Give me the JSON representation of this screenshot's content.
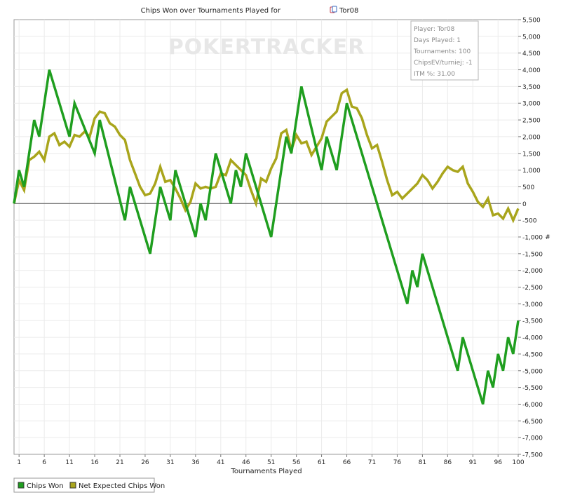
{
  "chart_data": {
    "type": "line",
    "title": "Chips Won over Tournaments Played for",
    "player_name": "Tor08",
    "xlabel": "Tournaments Played",
    "ylabel": "",
    "y_unit_symbol": "#",
    "xlim": [
      0,
      100
    ],
    "ylim": [
      -7500,
      5500
    ],
    "x_ticks": [
      1,
      6,
      11,
      16,
      21,
      26,
      31,
      36,
      41,
      46,
      51,
      56,
      61,
      66,
      71,
      76,
      81,
      86,
      91,
      96,
      100
    ],
    "y_ticks": [
      5500,
      5000,
      4500,
      4000,
      3500,
      3000,
      2500,
      2000,
      1500,
      1000,
      500,
      0,
      -500,
      -1000,
      -1500,
      -2000,
      -2500,
      -3000,
      -3500,
      -4000,
      -4500,
      -5000,
      -5500,
      -6000,
      -6500,
      -7000,
      -7500
    ],
    "y_tick_labels": [
      "5,500",
      "5,000",
      "4,500",
      "4,000",
      "3,500",
      "3,000",
      "2,500",
      "2,000",
      "1,500",
      "1,000",
      "500",
      "0",
      "-500",
      "-1,000",
      "-1,500",
      "-2,000",
      "-2,500",
      "-3,000",
      "-3,500",
      "-4,000",
      "-4,500",
      "-5,000",
      "-5,500",
      "-6,000",
      "-6,500",
      "-7,000",
      "-7,500"
    ],
    "grid": true,
    "legend_position": "bottom-left",
    "series": [
      {
        "name": "Chips Won",
        "color": "#1f9e1f",
        "points": [
          [
            0,
            0
          ],
          [
            1,
            1000
          ],
          [
            2,
            500
          ],
          [
            4,
            2500
          ],
          [
            5,
            2000
          ],
          [
            7,
            4000
          ],
          [
            11,
            2000
          ],
          [
            12,
            3000
          ],
          [
            16,
            1500
          ],
          [
            17,
            2500
          ],
          [
            22,
            -500
          ],
          [
            23,
            500
          ],
          [
            27,
            -1500
          ],
          [
            29,
            500
          ],
          [
            31,
            -500
          ],
          [
            32,
            1000
          ],
          [
            36,
            -1000
          ],
          [
            37,
            0
          ],
          [
            38,
            -500
          ],
          [
            40,
            1500
          ],
          [
            43,
            0
          ],
          [
            44,
            1000
          ],
          [
            45,
            500
          ],
          [
            46,
            1500
          ],
          [
            49,
            0
          ],
          [
            51,
            -1000
          ],
          [
            54,
            2000
          ],
          [
            55,
            1500
          ],
          [
            57,
            3500
          ],
          [
            61,
            1000
          ],
          [
            62,
            2000
          ],
          [
            64,
            1000
          ],
          [
            66,
            3000
          ],
          [
            78,
            -3000
          ],
          [
            79,
            -2000
          ],
          [
            80,
            -2500
          ],
          [
            81,
            -1500
          ],
          [
            88,
            -5000
          ],
          [
            89,
            -4000
          ],
          [
            93,
            -6000
          ],
          [
            94,
            -5000
          ],
          [
            95,
            -5500
          ],
          [
            96,
            -4500
          ],
          [
            97,
            -5000
          ],
          [
            98,
            -4000
          ],
          [
            99,
            -4500
          ],
          [
            100,
            -3500
          ]
        ]
      },
      {
        "name": "Net Expected Chips Won",
        "color": "#a9a51c",
        "points": [
          [
            0,
            0
          ],
          [
            1,
            700
          ],
          [
            2,
            400
          ],
          [
            3,
            1300
          ],
          [
            4,
            1400
          ],
          [
            5,
            1550
          ],
          [
            6,
            1300
          ],
          [
            7,
            2000
          ],
          [
            8,
            2100
          ],
          [
            9,
            1750
          ],
          [
            10,
            1850
          ],
          [
            11,
            1700
          ],
          [
            12,
            2050
          ],
          [
            13,
            2000
          ],
          [
            14,
            2150
          ],
          [
            15,
            2000
          ],
          [
            16,
            2550
          ],
          [
            17,
            2750
          ],
          [
            18,
            2700
          ],
          [
            19,
            2400
          ],
          [
            20,
            2300
          ],
          [
            21,
            2050
          ],
          [
            22,
            1900
          ],
          [
            23,
            1300
          ],
          [
            24,
            900
          ],
          [
            25,
            500
          ],
          [
            26,
            250
          ],
          [
            27,
            300
          ],
          [
            28,
            600
          ],
          [
            29,
            1100
          ],
          [
            30,
            650
          ],
          [
            31,
            700
          ],
          [
            32,
            450
          ],
          [
            33,
            150
          ],
          [
            34,
            -200
          ],
          [
            35,
            50
          ],
          [
            36,
            600
          ],
          [
            37,
            450
          ],
          [
            38,
            500
          ],
          [
            39,
            450
          ],
          [
            40,
            500
          ],
          [
            41,
            900
          ],
          [
            42,
            850
          ],
          [
            43,
            1300
          ],
          [
            44,
            1150
          ],
          [
            45,
            1000
          ],
          [
            46,
            850
          ],
          [
            47,
            400
          ],
          [
            48,
            0
          ],
          [
            49,
            750
          ],
          [
            50,
            650
          ],
          [
            51,
            1050
          ],
          [
            52,
            1350
          ],
          [
            53,
            2100
          ],
          [
            54,
            2200
          ],
          [
            55,
            1600
          ],
          [
            56,
            2050
          ],
          [
            57,
            1800
          ],
          [
            58,
            1850
          ],
          [
            59,
            1450
          ],
          [
            60,
            1700
          ],
          [
            61,
            1950
          ],
          [
            62,
            2450
          ],
          [
            63,
            2600
          ],
          [
            64,
            2750
          ],
          [
            65,
            3300
          ],
          [
            66,
            3400
          ],
          [
            67,
            2900
          ],
          [
            68,
            2850
          ],
          [
            69,
            2550
          ],
          [
            70,
            2050
          ],
          [
            71,
            1650
          ],
          [
            72,
            1750
          ],
          [
            73,
            1250
          ],
          [
            74,
            700
          ],
          [
            75,
            250
          ],
          [
            76,
            350
          ],
          [
            77,
            150
          ],
          [
            78,
            300
          ],
          [
            79,
            450
          ],
          [
            80,
            600
          ],
          [
            81,
            850
          ],
          [
            82,
            700
          ],
          [
            83,
            450
          ],
          [
            84,
            650
          ],
          [
            85,
            900
          ],
          [
            86,
            1100
          ],
          [
            87,
            1000
          ],
          [
            88,
            950
          ],
          [
            89,
            1100
          ],
          [
            90,
            600
          ],
          [
            91,
            350
          ],
          [
            92,
            50
          ],
          [
            93,
            -100
          ],
          [
            94,
            150
          ],
          [
            95,
            -350
          ],
          [
            96,
            -300
          ],
          [
            97,
            -450
          ],
          [
            98,
            -150
          ],
          [
            99,
            -500
          ],
          [
            100,
            -150
          ]
        ]
      }
    ],
    "info_box": [
      "Player: Tor08",
      "Days Played: 1",
      "Tournaments: 100",
      "ChipsEV/turniej: -1",
      "ITM %: 31.00"
    ],
    "watermark": "POKERTRACKER"
  }
}
